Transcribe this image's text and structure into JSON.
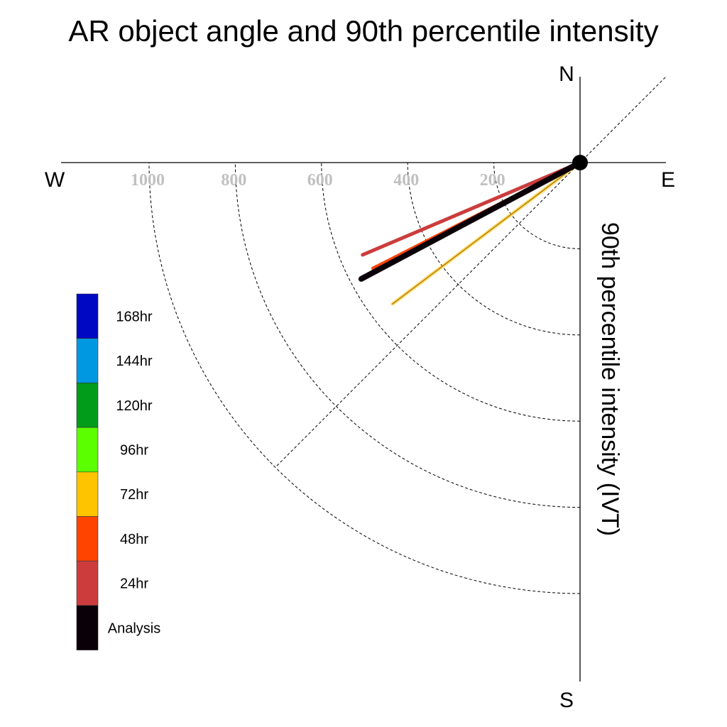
{
  "title": "AR object angle and 90th percentile intensity",
  "compass": {
    "n": "N",
    "s": "S",
    "e": "E",
    "w": "W"
  },
  "ylabel": "90th percentile intensity (IVT)",
  "chart_data": {
    "type": "polar-vector",
    "title": "AR object angle and 90th percentile intensity",
    "ylabel": "90th percentile intensity (IVT)",
    "radial_ticks": [
      200,
      400,
      600,
      800,
      1000
    ],
    "radial_tick_labels": [
      "200",
      "400",
      "600",
      "800",
      "1000"
    ],
    "radial_max": 1000,
    "legend_placement": "left",
    "legend": [
      {
        "label": "168hr",
        "color": "#0008c4"
      },
      {
        "label": "144hr",
        "color": "#0098e0"
      },
      {
        "label": "120hr",
        "color": "#009c1a"
      },
      {
        "label": "96hr",
        "color": "#5cff00"
      },
      {
        "label": "72hr",
        "color": "#ffc400"
      },
      {
        "label": "48hr",
        "color": "#ff4400"
      },
      {
        "label": "24hr",
        "color": "#cc3c3c"
      },
      {
        "label": "Analysis",
        "color": "#0a0008"
      }
    ],
    "series": [
      {
        "name": "24hr",
        "angle_deg": 247,
        "ivt": 548,
        "color": "#cc3c3c"
      },
      {
        "name": "48hr",
        "angle_deg": 243,
        "ivt": 540,
        "color": "#ff4400"
      },
      {
        "name": "72hr",
        "angle_deg": 233,
        "ivt": 545,
        "color": "#ffc400"
      },
      {
        "name": "Analysis",
        "angle_deg": 242,
        "ivt": 575,
        "color": "#0a0008"
      }
    ]
  }
}
